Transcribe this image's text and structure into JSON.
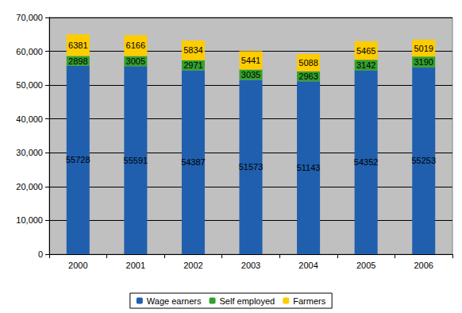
{
  "chart_data": {
    "type": "bar",
    "stacked": true,
    "data_labels": true,
    "grid": true,
    "legend": "bottom",
    "categories": [
      "2000",
      "2001",
      "2002",
      "2003",
      "2004",
      "2005",
      "2006"
    ],
    "series": [
      {
        "name": "Wage earners",
        "color": "#1f5fae",
        "values": [
          55728,
          55591,
          54387,
          51573,
          51143,
          54352,
          55253
        ]
      },
      {
        "name": "Self employed",
        "color": "#33a02c",
        "values": [
          2898,
          3005,
          2971,
          3035,
          2963,
          3142,
          3190
        ]
      },
      {
        "name": "Farmers",
        "color": "#ffcc00",
        "values": [
          6381,
          6166,
          5834,
          5441,
          5088,
          5465,
          5019
        ]
      }
    ],
    "ylim": [
      0,
      70000
    ],
    "yticks": [
      0,
      10000,
      20000,
      30000,
      40000,
      50000,
      60000,
      70000
    ]
  }
}
